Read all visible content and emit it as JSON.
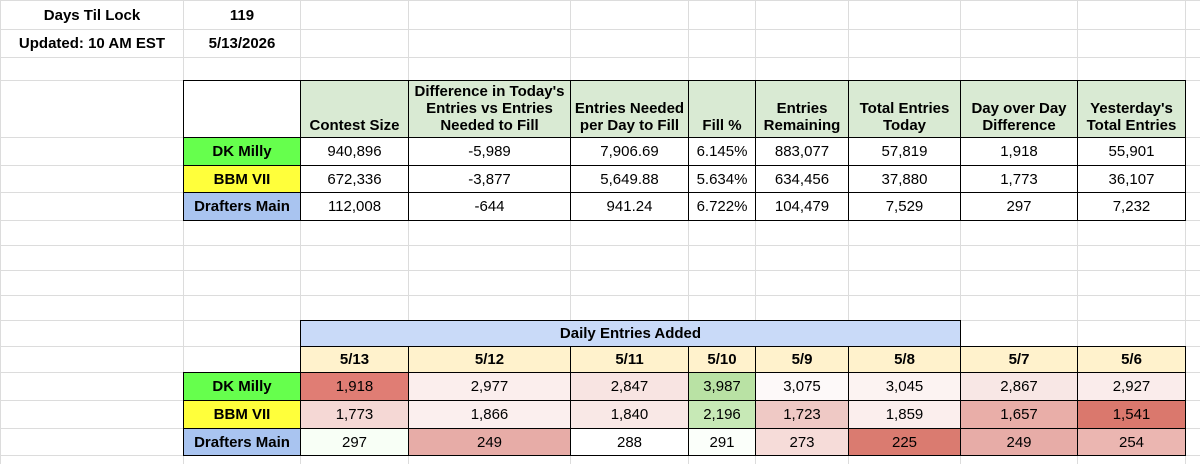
{
  "info": [
    {
      "label": "Days Til Lock",
      "value": "119"
    },
    {
      "label": "Updated: 10 AM EST",
      "value": "5/13/2026"
    }
  ],
  "summary": {
    "headers": [
      "Contest Size",
      "Difference in Today's Entries vs Entries Needed to Fill",
      "Entries Needed per Day to Fill",
      "Fill %",
      "Entries Remaining",
      "Total Entries Today",
      "Day over Day Difference",
      "Yesterday's Total Entries"
    ],
    "rows": [
      {
        "label": "DK Milly",
        "color": "#66ff4d",
        "cells": [
          "940,896",
          "-5,989",
          "7,906.69",
          "6.145%",
          "883,077",
          "57,819",
          "1,918",
          "55,901"
        ]
      },
      {
        "label": "BBM VII",
        "color": "#ffff3b",
        "cells": [
          "672,336",
          "-3,877",
          "5,649.88",
          "5.634%",
          "634,456",
          "37,880",
          "1,773",
          "36,107"
        ]
      },
      {
        "label": "Drafters Main",
        "color": "#a9c4f0",
        "cells": [
          "112,008",
          "-644",
          "941.24",
          "6.722%",
          "104,479",
          "7,529",
          "297",
          "7,232"
        ]
      }
    ]
  },
  "daily": {
    "title": "Daily Entries Added",
    "title_color": "#c9daf8",
    "date_color": "#fff2cc",
    "dates": [
      "5/13",
      "5/12",
      "5/11",
      "5/10",
      "5/9",
      "5/8",
      "5/7",
      "5/6"
    ],
    "rows": [
      {
        "label": "DK Milly",
        "color": "#66ff4d",
        "cells": [
          "1,918",
          "2,977",
          "2,847",
          "3,987",
          "3,075",
          "3,045",
          "2,867",
          "2,927"
        ],
        "cell_colors": [
          "#e07d74",
          "#fbeeed",
          "#f8e4e2",
          "#b9e2a4",
          "#fdf9f9",
          "#fcf3f2",
          "#f8e7e5",
          "#faeceb"
        ]
      },
      {
        "label": "BBM VII",
        "color": "#ffff3b",
        "cells": [
          "1,773",
          "1,866",
          "1,840",
          "2,196",
          "1,723",
          "1,859",
          "1,657",
          "1,541"
        ],
        "cell_colors": [
          "#f5d8d5",
          "#fbefee",
          "#f9e8e6",
          "#c7e9b6",
          "#efc9c5",
          "#fbeeed",
          "#e9aea8",
          "#da786d"
        ]
      },
      {
        "label": "Drafters Main",
        "color": "#a9c4f0",
        "cells": [
          "297",
          "249",
          "288",
          "291",
          "273",
          "225",
          "249",
          "254"
        ],
        "cell_colors": [
          "#f8fff6",
          "#e7aca7",
          "#ffffff",
          "#fbfffa",
          "#f6dcd9",
          "#da7b70",
          "#e7aca7",
          "#ebb6b1"
        ]
      }
    ]
  }
}
